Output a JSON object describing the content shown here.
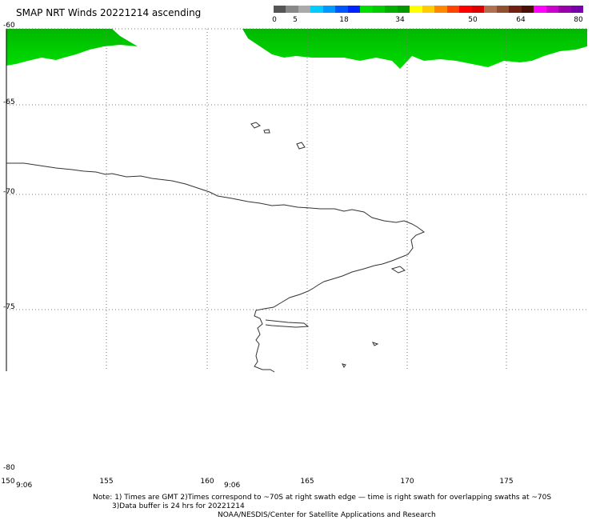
{
  "title": "SMAP NRT Winds 20221214 ascending",
  "colorbar": {
    "labels": [
      "0",
      "5",
      "18",
      "34",
      "50",
      "64",
      "80"
    ],
    "colors": [
      "#555555",
      "#888888",
      "#aaaaaa",
      "#00ccff",
      "#0099ff",
      "#0055ff",
      "#0022ff",
      "#00dd00",
      "#00cc00",
      "#00b000",
      "#009900",
      "#ffff00",
      "#ffcc00",
      "#ff8800",
      "#ff4400",
      "#ff0000",
      "#dd0000",
      "#b07050",
      "#905030",
      "#702010",
      "#4a1008",
      "#ff00ff",
      "#cc00cc",
      "#9900aa",
      "#7700aa"
    ]
  },
  "map": {
    "lat_labels": [
      "-60",
      "-65",
      "-70",
      "-75",
      "-80"
    ],
    "lon_labels": [
      "150",
      "155",
      "160",
      "165",
      "170",
      "175"
    ],
    "time_labels": [
      "9:06",
      "9:06"
    ]
  },
  "notes": {
    "line1": "Note: 1) Times are GMT 2)Times correspond to ~70S at right swath edge — time is right swath for overlapping swaths at ~70S",
    "line2": "3)Data buffer is 24 hrs for 20221214",
    "line3": "NOAA/NESDIS/Center for Satellite Applications and Research"
  },
  "colors": {
    "wind_green": "#00d400",
    "wind_green_dark": "#00a800",
    "coast": "#333333"
  }
}
